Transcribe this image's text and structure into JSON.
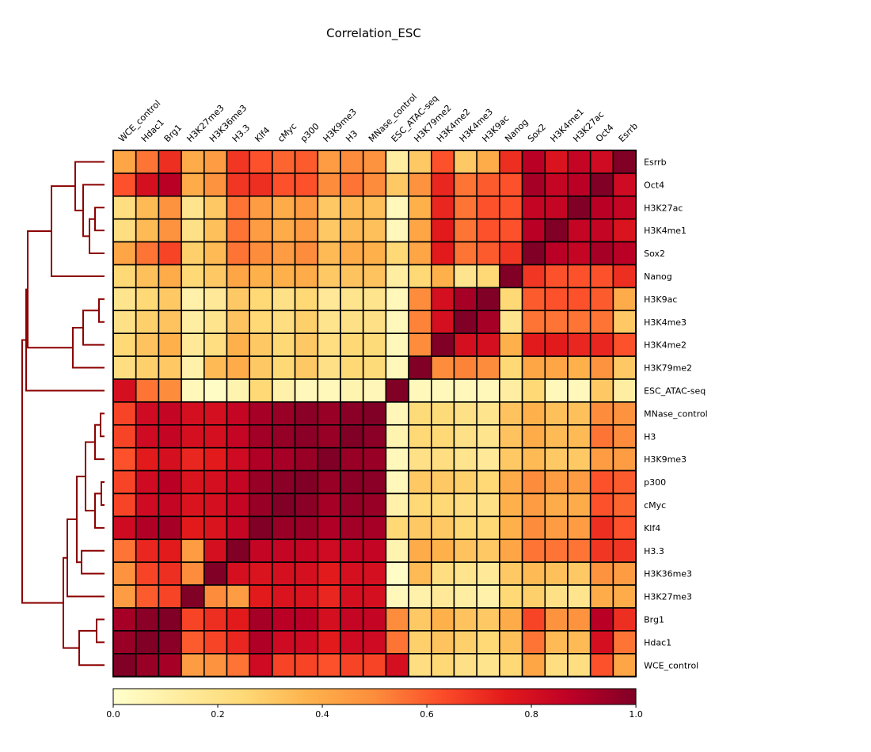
{
  "chart_data": {
    "type": "heatmap",
    "title": "Correlation_ESC",
    "x_labels": [
      "WCE_control",
      "Hdac1",
      "Brg1",
      "H3K27me3",
      "H3K36me3",
      "H3.3",
      "Klf4",
      "cMyc",
      "p300",
      "H3K9me3",
      "H3",
      "MNase_control",
      "ESC_ATAC-seq",
      "H3K79me2",
      "H3K4me2",
      "H3K4me3",
      "H3K9ac",
      "Nanog",
      "Sox2",
      "H3K4me1",
      "H3K27ac",
      "Oct4",
      "Esrrb"
    ],
    "y_labels": [
      "Esrrb",
      "Oct4",
      "H3K27ac",
      "H3K4me1",
      "Sox2",
      "Nanog",
      "H3K9ac",
      "H3K4me3",
      "H3K4me2",
      "H3K79me2",
      "ESC_ATAC-seq",
      "MNase_control",
      "H3",
      "H3K9me3",
      "p300",
      "cMyc",
      "Klf4",
      "H3.3",
      "H3K36me3",
      "H3K27me3",
      "Brg1",
      "Hdac1",
      "WCE_control"
    ],
    "values": [
      [
        0.42,
        0.55,
        0.7,
        0.4,
        0.45,
        0.68,
        0.62,
        0.58,
        0.6,
        0.45,
        0.5,
        0.48,
        0.12,
        0.3,
        0.62,
        0.3,
        0.4,
        0.7,
        0.88,
        0.78,
        0.85,
        0.82,
        1.0
      ],
      [
        0.62,
        0.8,
        0.88,
        0.4,
        0.48,
        0.68,
        0.7,
        0.62,
        0.62,
        0.5,
        0.55,
        0.5,
        0.3,
        0.48,
        0.72,
        0.55,
        0.6,
        0.62,
        0.92,
        0.85,
        0.88,
        1.0,
        0.82
      ],
      [
        0.22,
        0.35,
        0.48,
        0.18,
        0.3,
        0.55,
        0.45,
        0.4,
        0.45,
        0.3,
        0.35,
        0.33,
        0.05,
        0.38,
        0.72,
        0.55,
        0.62,
        0.62,
        0.85,
        0.85,
        1.0,
        0.88,
        0.85
      ],
      [
        0.22,
        0.35,
        0.48,
        0.2,
        0.33,
        0.55,
        0.45,
        0.4,
        0.45,
        0.3,
        0.35,
        0.33,
        0.05,
        0.42,
        0.75,
        0.55,
        0.62,
        0.62,
        0.88,
        1.0,
        0.85,
        0.85,
        0.78
      ],
      [
        0.42,
        0.55,
        0.65,
        0.28,
        0.35,
        0.55,
        0.5,
        0.45,
        0.5,
        0.35,
        0.4,
        0.38,
        0.25,
        0.42,
        0.75,
        0.55,
        0.6,
        0.68,
        1.0,
        0.88,
        0.85,
        0.92,
        0.88
      ],
      [
        0.25,
        0.33,
        0.4,
        0.25,
        0.3,
        0.42,
        0.38,
        0.38,
        0.4,
        0.3,
        0.32,
        0.32,
        0.12,
        0.25,
        0.38,
        0.18,
        0.25,
        1.0,
        0.68,
        0.62,
        0.62,
        0.62,
        0.7
      ],
      [
        0.18,
        0.25,
        0.3,
        0.1,
        0.15,
        0.3,
        0.25,
        0.2,
        0.25,
        0.15,
        0.18,
        0.18,
        0.05,
        0.5,
        0.8,
        0.92,
        1.0,
        0.25,
        0.6,
        0.62,
        0.62,
        0.6,
        0.4
      ],
      [
        0.2,
        0.28,
        0.32,
        0.12,
        0.18,
        0.32,
        0.25,
        0.22,
        0.28,
        0.18,
        0.2,
        0.2,
        0.05,
        0.52,
        0.8,
        1.0,
        0.92,
        0.18,
        0.55,
        0.55,
        0.55,
        0.55,
        0.3
      ],
      [
        0.25,
        0.32,
        0.38,
        0.15,
        0.22,
        0.38,
        0.3,
        0.25,
        0.3,
        0.22,
        0.25,
        0.24,
        0.05,
        0.5,
        1.0,
        0.8,
        0.8,
        0.38,
        0.75,
        0.75,
        0.72,
        0.72,
        0.62
      ],
      [
        0.22,
        0.28,
        0.3,
        0.1,
        0.35,
        0.4,
        0.3,
        0.25,
        0.3,
        0.2,
        0.25,
        0.24,
        0.05,
        1.0,
        0.5,
        0.52,
        0.5,
        0.25,
        0.42,
        0.42,
        0.38,
        0.48,
        0.3
      ],
      [
        0.8,
        0.55,
        0.5,
        0.05,
        0.02,
        0.08,
        0.25,
        0.1,
        0.05,
        0.05,
        0.08,
        0.06,
        1.0,
        0.05,
        0.05,
        0.05,
        0.05,
        0.12,
        0.25,
        0.05,
        0.05,
        0.3,
        0.12
      ],
      [
        0.65,
        0.82,
        0.85,
        0.8,
        0.8,
        0.85,
        0.92,
        0.95,
        0.98,
        0.95,
        0.98,
        1.0,
        0.06,
        0.24,
        0.24,
        0.2,
        0.18,
        0.32,
        0.38,
        0.33,
        0.33,
        0.5,
        0.48
      ],
      [
        0.65,
        0.82,
        0.85,
        0.8,
        0.8,
        0.85,
        0.93,
        0.96,
        0.98,
        0.95,
        1.0,
        0.98,
        0.08,
        0.25,
        0.25,
        0.2,
        0.18,
        0.32,
        0.4,
        0.35,
        0.35,
        0.55,
        0.5
      ],
      [
        0.62,
        0.75,
        0.8,
        0.72,
        0.75,
        0.82,
        0.9,
        0.92,
        0.95,
        1.0,
        0.95,
        0.95,
        0.05,
        0.2,
        0.22,
        0.18,
        0.15,
        0.3,
        0.35,
        0.3,
        0.3,
        0.45,
        0.45
      ],
      [
        0.65,
        0.82,
        0.88,
        0.78,
        0.8,
        0.85,
        0.95,
        0.98,
        1.0,
        0.95,
        0.98,
        0.98,
        0.05,
        0.3,
        0.3,
        0.28,
        0.25,
        0.4,
        0.5,
        0.45,
        0.45,
        0.62,
        0.6
      ],
      [
        0.65,
        0.82,
        0.85,
        0.78,
        0.8,
        0.85,
        0.95,
        1.0,
        0.98,
        0.92,
        0.96,
        0.95,
        0.1,
        0.25,
        0.25,
        0.22,
        0.2,
        0.38,
        0.45,
        0.4,
        0.4,
        0.62,
        0.58
      ],
      [
        0.82,
        0.9,
        0.92,
        0.75,
        0.78,
        0.85,
        1.0,
        0.95,
        0.95,
        0.9,
        0.93,
        0.92,
        0.25,
        0.3,
        0.3,
        0.25,
        0.25,
        0.38,
        0.5,
        0.45,
        0.45,
        0.7,
        0.62
      ],
      [
        0.55,
        0.72,
        0.75,
        0.45,
        0.8,
        1.0,
        0.85,
        0.85,
        0.85,
        0.82,
        0.85,
        0.85,
        0.08,
        0.4,
        0.38,
        0.32,
        0.3,
        0.42,
        0.55,
        0.55,
        0.55,
        0.68,
        0.68
      ],
      [
        0.48,
        0.65,
        0.7,
        0.5,
        1.0,
        0.8,
        0.78,
        0.8,
        0.8,
        0.75,
        0.8,
        0.8,
        0.02,
        0.35,
        0.22,
        0.18,
        0.15,
        0.3,
        0.35,
        0.33,
        0.3,
        0.48,
        0.45
      ],
      [
        0.45,
        0.6,
        0.65,
        1.0,
        0.5,
        0.45,
        0.75,
        0.78,
        0.78,
        0.72,
        0.8,
        0.8,
        0.05,
        0.1,
        0.15,
        0.12,
        0.1,
        0.25,
        0.28,
        0.2,
        0.18,
        0.4,
        0.4
      ],
      [
        0.92,
        0.98,
        1.0,
        0.65,
        0.7,
        0.75,
        0.92,
        0.88,
        0.88,
        0.8,
        0.85,
        0.85,
        0.5,
        0.3,
        0.38,
        0.32,
        0.3,
        0.4,
        0.65,
        0.48,
        0.48,
        0.88,
        0.7
      ],
      [
        0.95,
        1.0,
        0.98,
        0.6,
        0.65,
        0.72,
        0.9,
        0.82,
        0.82,
        0.75,
        0.82,
        0.82,
        0.55,
        0.28,
        0.32,
        0.28,
        0.25,
        0.33,
        0.55,
        0.35,
        0.35,
        0.8,
        0.55
      ],
      [
        1.0,
        0.95,
        0.92,
        0.45,
        0.48,
        0.55,
        0.82,
        0.65,
        0.65,
        0.62,
        0.65,
        0.65,
        0.8,
        0.22,
        0.25,
        0.2,
        0.18,
        0.25,
        0.42,
        0.22,
        0.22,
        0.62,
        0.42
      ]
    ],
    "colormap": [
      "#ffffcc",
      "#ffeda0",
      "#fed976",
      "#feb24c",
      "#fd8d3c",
      "#fc4e2a",
      "#e31a1c",
      "#bd0026",
      "#800026"
    ],
    "vmin": 0.0,
    "vmax": 1.0,
    "colorbar_ticks": [
      "0.0",
      "0.2",
      "0.4",
      "0.6",
      "0.8",
      "1.0"
    ],
    "dendrogram_color": "#8b0000",
    "grid": true
  }
}
